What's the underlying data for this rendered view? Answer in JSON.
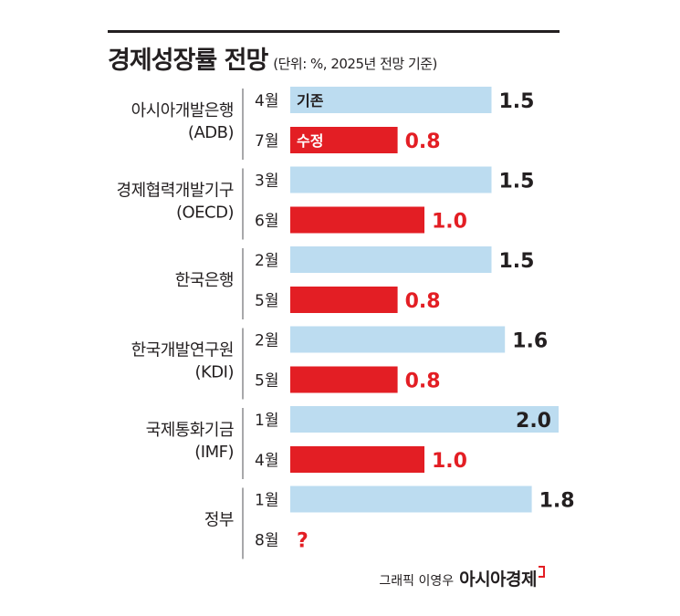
{
  "title": "경제성장률 전망",
  "unit_note": "(단위: %, 2025년 전망 기준)",
  "legend": {
    "original": "기존",
    "revised": "수정"
  },
  "colors": {
    "original": "#bcdcf0",
    "revised": "#e31e24",
    "text": "#231f20",
    "revised_text": "#e31e24"
  },
  "credit": {
    "author": "그래픽 이영우",
    "brand": "아시아경제"
  },
  "chart_data": {
    "type": "bar",
    "orientation": "horizontal",
    "xlim": [
      0,
      2.0
    ],
    "groups": [
      {
        "name": [
          "아시아개발은행",
          "(ADB)"
        ],
        "bars": [
          {
            "month": "4월",
            "value": 1.5,
            "label": "1.5",
            "kind": "original",
            "tag": "기존"
          },
          {
            "month": "7월",
            "value": 0.8,
            "label": "0.8",
            "kind": "revised",
            "tag": "수정"
          }
        ]
      },
      {
        "name": [
          "경제협력개발기구",
          "(OECD)"
        ],
        "bars": [
          {
            "month": "3월",
            "value": 1.5,
            "label": "1.5",
            "kind": "original"
          },
          {
            "month": "6월",
            "value": 1.0,
            "label": "1.0",
            "kind": "revised"
          }
        ]
      },
      {
        "name": [
          "한국은행"
        ],
        "bars": [
          {
            "month": "2월",
            "value": 1.5,
            "label": "1.5",
            "kind": "original"
          },
          {
            "month": "5월",
            "value": 0.8,
            "label": "0.8",
            "kind": "revised"
          }
        ]
      },
      {
        "name": [
          "한국개발연구원",
          "(KDI)"
        ],
        "bars": [
          {
            "month": "2월",
            "value": 1.6,
            "label": "1.6",
            "kind": "original"
          },
          {
            "month": "5월",
            "value": 0.8,
            "label": "0.8",
            "kind": "revised"
          }
        ]
      },
      {
        "name": [
          "국제통화기금",
          "(IMF)"
        ],
        "bars": [
          {
            "month": "1월",
            "value": 2.0,
            "label": "2.0",
            "kind": "original"
          },
          {
            "month": "4월",
            "value": 1.0,
            "label": "1.0",
            "kind": "revised"
          }
        ]
      },
      {
        "name": [
          "정부"
        ],
        "bars": [
          {
            "month": "1월",
            "value": 1.8,
            "label": "1.8",
            "kind": "original"
          },
          {
            "month": "8월",
            "value": null,
            "label": "?",
            "kind": "revised"
          }
        ]
      }
    ]
  }
}
